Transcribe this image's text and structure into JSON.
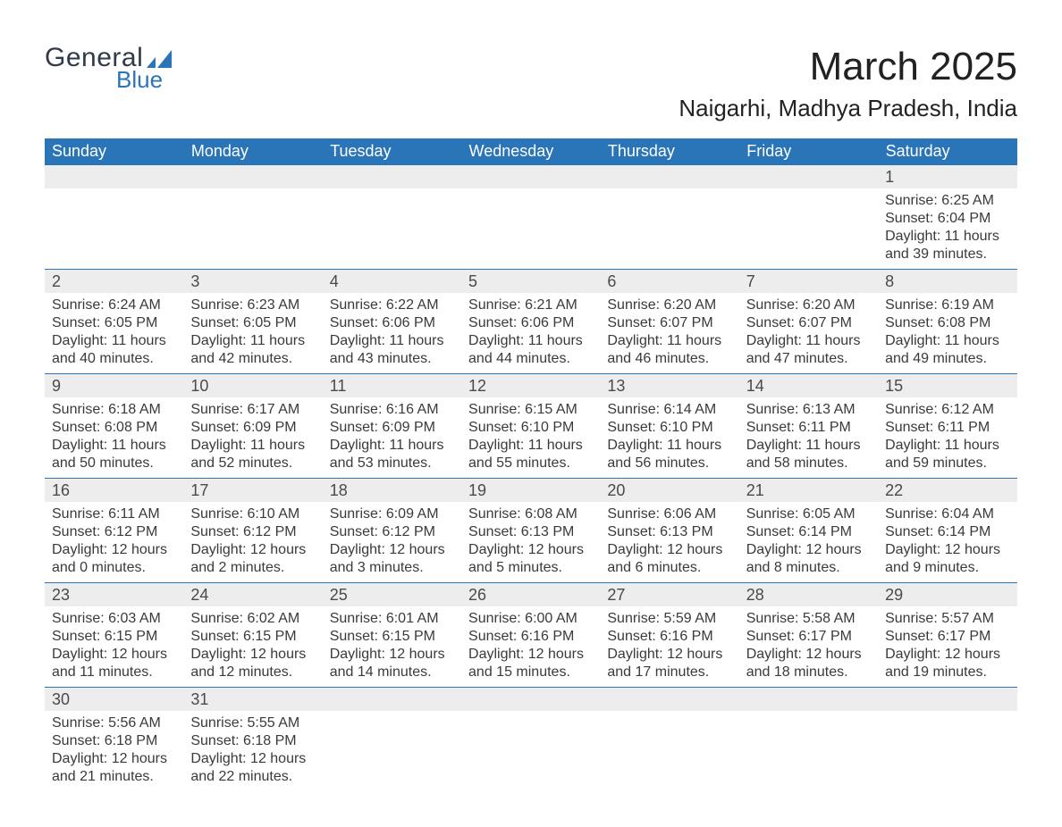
{
  "logo": {
    "text_general": "General",
    "text_blue": "Blue",
    "shape_color": "#2a74b8"
  },
  "title": "March 2025",
  "location": "Naigarhi, Madhya Pradesh, India",
  "colors": {
    "header_bg": "#2a74b8",
    "header_fg": "#ffffff",
    "daynum_bg": "#ededed",
    "text": "#3a3a3a",
    "rule": "#2a74b8"
  },
  "typography": {
    "title_fontsize_pt": 33,
    "location_fontsize_pt": 20,
    "header_fontsize_pt": 14,
    "daynum_fontsize_pt": 14,
    "body_fontsize_pt": 12,
    "font_family": "Arial"
  },
  "calendar": {
    "headers": [
      "Sunday",
      "Monday",
      "Tuesday",
      "Wednesday",
      "Thursday",
      "Friday",
      "Saturday"
    ],
    "first_weekday_index": 6,
    "num_days": 31,
    "days": {
      "1": {
        "sunrise": "6:25 AM",
        "sunset": "6:04 PM",
        "daylight": "11 hours and 39 minutes."
      },
      "2": {
        "sunrise": "6:24 AM",
        "sunset": "6:05 PM",
        "daylight": "11 hours and 40 minutes."
      },
      "3": {
        "sunrise": "6:23 AM",
        "sunset": "6:05 PM",
        "daylight": "11 hours and 42 minutes."
      },
      "4": {
        "sunrise": "6:22 AM",
        "sunset": "6:06 PM",
        "daylight": "11 hours and 43 minutes."
      },
      "5": {
        "sunrise": "6:21 AM",
        "sunset": "6:06 PM",
        "daylight": "11 hours and 44 minutes."
      },
      "6": {
        "sunrise": "6:20 AM",
        "sunset": "6:07 PM",
        "daylight": "11 hours and 46 minutes."
      },
      "7": {
        "sunrise": "6:20 AM",
        "sunset": "6:07 PM",
        "daylight": "11 hours and 47 minutes."
      },
      "8": {
        "sunrise": "6:19 AM",
        "sunset": "6:08 PM",
        "daylight": "11 hours and 49 minutes."
      },
      "9": {
        "sunrise": "6:18 AM",
        "sunset": "6:08 PM",
        "daylight": "11 hours and 50 minutes."
      },
      "10": {
        "sunrise": "6:17 AM",
        "sunset": "6:09 PM",
        "daylight": "11 hours and 52 minutes."
      },
      "11": {
        "sunrise": "6:16 AM",
        "sunset": "6:09 PM",
        "daylight": "11 hours and 53 minutes."
      },
      "12": {
        "sunrise": "6:15 AM",
        "sunset": "6:10 PM",
        "daylight": "11 hours and 55 minutes."
      },
      "13": {
        "sunrise": "6:14 AM",
        "sunset": "6:10 PM",
        "daylight": "11 hours and 56 minutes."
      },
      "14": {
        "sunrise": "6:13 AM",
        "sunset": "6:11 PM",
        "daylight": "11 hours and 58 minutes."
      },
      "15": {
        "sunrise": "6:12 AM",
        "sunset": "6:11 PM",
        "daylight": "11 hours and 59 minutes."
      },
      "16": {
        "sunrise": "6:11 AM",
        "sunset": "6:12 PM",
        "daylight": "12 hours and 0 minutes."
      },
      "17": {
        "sunrise": "6:10 AM",
        "sunset": "6:12 PM",
        "daylight": "12 hours and 2 minutes."
      },
      "18": {
        "sunrise": "6:09 AM",
        "sunset": "6:12 PM",
        "daylight": "12 hours and 3 minutes."
      },
      "19": {
        "sunrise": "6:08 AM",
        "sunset": "6:13 PM",
        "daylight": "12 hours and 5 minutes."
      },
      "20": {
        "sunrise": "6:06 AM",
        "sunset": "6:13 PM",
        "daylight": "12 hours and 6 minutes."
      },
      "21": {
        "sunrise": "6:05 AM",
        "sunset": "6:14 PM",
        "daylight": "12 hours and 8 minutes."
      },
      "22": {
        "sunrise": "6:04 AM",
        "sunset": "6:14 PM",
        "daylight": "12 hours and 9 minutes."
      },
      "23": {
        "sunrise": "6:03 AM",
        "sunset": "6:15 PM",
        "daylight": "12 hours and 11 minutes."
      },
      "24": {
        "sunrise": "6:02 AM",
        "sunset": "6:15 PM",
        "daylight": "12 hours and 12 minutes."
      },
      "25": {
        "sunrise": "6:01 AM",
        "sunset": "6:15 PM",
        "daylight": "12 hours and 14 minutes."
      },
      "26": {
        "sunrise": "6:00 AM",
        "sunset": "6:16 PM",
        "daylight": "12 hours and 15 minutes."
      },
      "27": {
        "sunrise": "5:59 AM",
        "sunset": "6:16 PM",
        "daylight": "12 hours and 17 minutes."
      },
      "28": {
        "sunrise": "5:58 AM",
        "sunset": "6:17 PM",
        "daylight": "12 hours and 18 minutes."
      },
      "29": {
        "sunrise": "5:57 AM",
        "sunset": "6:17 PM",
        "daylight": "12 hours and 19 minutes."
      },
      "30": {
        "sunrise": "5:56 AM",
        "sunset": "6:18 PM",
        "daylight": "12 hours and 21 minutes."
      },
      "31": {
        "sunrise": "5:55 AM",
        "sunset": "6:18 PM",
        "daylight": "12 hours and 22 minutes."
      }
    },
    "labels": {
      "sunrise": "Sunrise:",
      "sunset": "Sunset:",
      "daylight": "Daylight:"
    }
  }
}
